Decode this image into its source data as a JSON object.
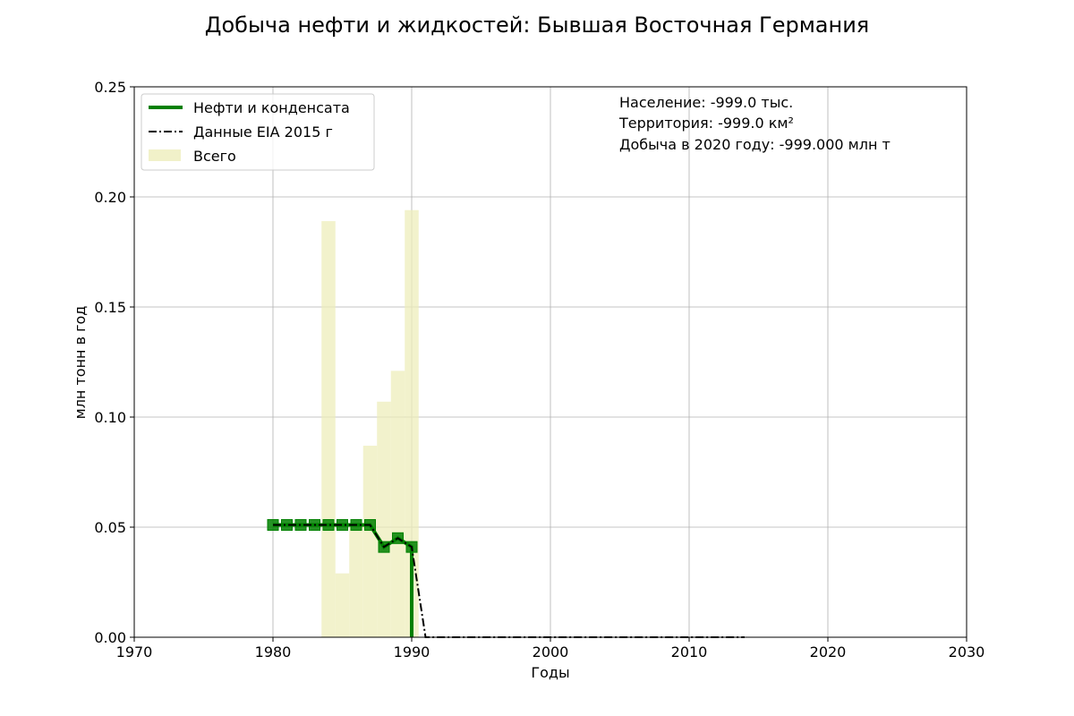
{
  "chart_data": {
    "type": "bar",
    "title": "Добыча нефти и жидкостей: Бывшая Восточная Германия",
    "xlabel": "Годы",
    "ylabel": "млн тонн в год",
    "xlim": [
      1970,
      2030
    ],
    "ylim": [
      0,
      0.25
    ],
    "x_ticks": [
      1970,
      1980,
      1990,
      2000,
      2010,
      2020,
      2030
    ],
    "x_tick_labels": [
      "1970",
      "1980",
      "1990",
      "2000",
      "2010",
      "2020",
      "2030"
    ],
    "y_ticks": [
      0,
      0.05,
      0.1,
      0.15,
      0.2,
      0.25
    ],
    "y_tick_labels": [
      "0.00",
      "0.05",
      "0.10",
      "0.15",
      "0.20",
      "0.25"
    ],
    "grid": true,
    "legend_position": "top-left",
    "series": [
      {
        "name": "Нефти и конденсата",
        "kind": "line",
        "color": "#008000",
        "marker": "square",
        "x": [
          1980,
          1981,
          1982,
          1983,
          1984,
          1985,
          1986,
          1987,
          1988,
          1989,
          1990,
          1990
        ],
        "y": [
          0.051,
          0.051,
          0.051,
          0.051,
          0.051,
          0.051,
          0.051,
          0.051,
          0.041,
          0.045,
          0.041,
          0.0
        ],
        "marker_count": 11
      },
      {
        "name": "Данные EIA 2015 г",
        "kind": "line",
        "color": "#000000",
        "style": "dash-dot",
        "x": [
          1980,
          1981,
          1982,
          1983,
          1984,
          1985,
          1986,
          1987,
          1988,
          1989,
          1990,
          1991,
          1992,
          1993,
          1994,
          1995,
          1996,
          1997,
          1998,
          1999,
          2000,
          2001,
          2002,
          2003,
          2004,
          2005,
          2006,
          2007,
          2008,
          2009,
          2010,
          2011,
          2012,
          2013,
          2014
        ],
        "y": [
          0.051,
          0.051,
          0.051,
          0.051,
          0.051,
          0.051,
          0.051,
          0.051,
          0.041,
          0.045,
          0.041,
          0,
          0,
          0,
          0,
          0,
          0,
          0,
          0,
          0,
          0,
          0,
          0,
          0,
          0,
          0,
          0,
          0,
          0,
          0,
          0,
          0,
          0,
          0,
          0
        ]
      },
      {
        "name": "Всего",
        "kind": "bar",
        "color": "#eeeebb",
        "x": [
          1984,
          1985,
          1986,
          1987,
          1988,
          1989,
          1990
        ],
        "y": [
          0.189,
          0.029,
          0.051,
          0.087,
          0.107,
          0.121,
          0.194
        ]
      }
    ],
    "annotations": [
      "Население: -999.0 тыс.",
      "Территория: -999.0 км²",
      "Добыча в 2020 году: -999.000 млн т"
    ]
  }
}
